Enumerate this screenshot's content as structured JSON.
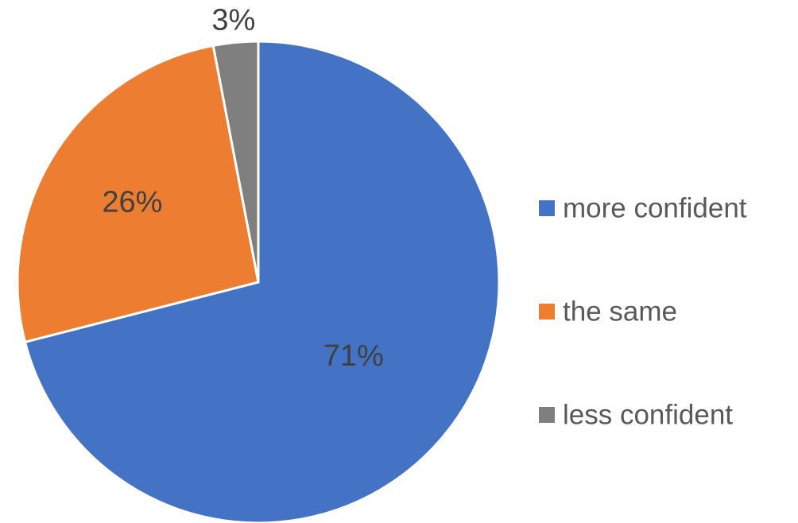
{
  "chart_data": {
    "type": "pie",
    "title": "",
    "legend_position": "right",
    "slices": [
      {
        "label": "more confident",
        "value": 71,
        "display": "71%",
        "color": "#4472C4"
      },
      {
        "label": "the same",
        "value": 26,
        "display": "26%",
        "color": "#ED7D31"
      },
      {
        "label": "less confident",
        "value": 3,
        "display": "3%",
        "color": "#7F7F7F"
      }
    ],
    "label_color": "#404040",
    "legend_text_color": "#595959"
  }
}
